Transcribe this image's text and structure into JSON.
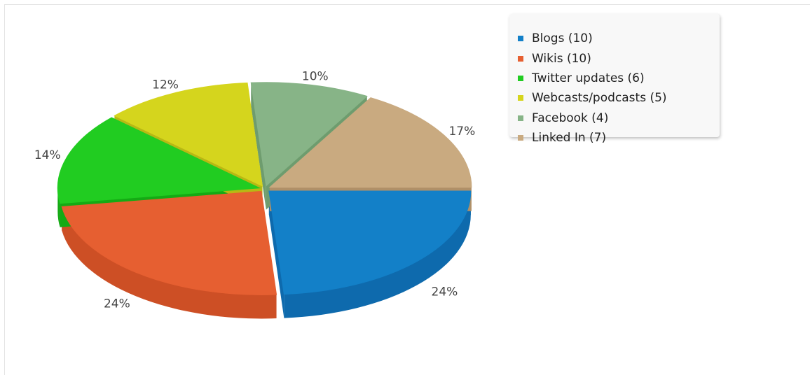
{
  "chart_data": {
    "type": "pie",
    "title": "",
    "slices": [
      {
        "name": "Blogs",
        "value": 10,
        "legend_label": "Blogs (10)",
        "percent_label": "24%",
        "color": "#1380c8",
        "side_color": "#0e6aad"
      },
      {
        "name": "Wikis",
        "value": 10,
        "legend_label": "Wikis (10)",
        "percent_label": "24%",
        "color": "#e65f31",
        "side_color": "#cd4f25"
      },
      {
        "name": "Twitter updates",
        "value": 6,
        "legend_label": "Twitter updates (6)",
        "percent_label": "14%",
        "color": "#21cc21",
        "side_color": "#14aa14"
      },
      {
        "name": "Webcasts/podcasts",
        "value": 5,
        "legend_label": "Webcasts/podcasts (5)",
        "percent_label": "12%",
        "color": "#d5d51d",
        "side_color": "#b8b814"
      },
      {
        "name": "Facebook",
        "value": 4,
        "legend_label": "Facebook (4)",
        "percent_label": "10%",
        "color": "#87b487",
        "side_color": "#6e9c6e"
      },
      {
        "name": "Linked In",
        "value": 7,
        "legend_label": "Linked In (7)",
        "percent_label": "17%",
        "color": "#c9aa80",
        "side_color": "#b09068"
      }
    ],
    "legend_position": "top-right",
    "style": "3d-exploded"
  }
}
